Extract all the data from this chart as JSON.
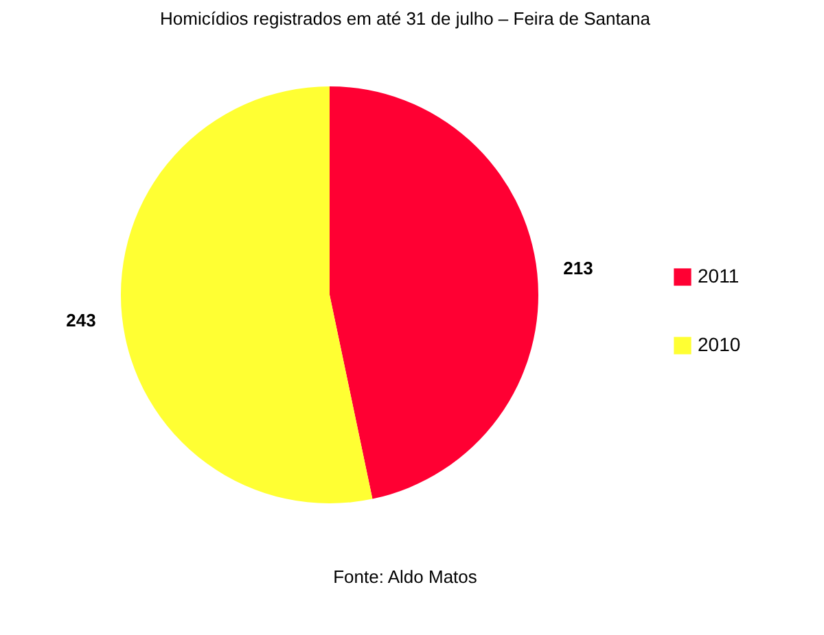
{
  "chart_data": {
    "type": "pie",
    "title": "Homicídios registrados em até 31 de julho – Feira de Santana",
    "categories": [
      "2011",
      "2010"
    ],
    "values": [
      213,
      243
    ],
    "colors": [
      "#ff0033",
      "#ffff33"
    ],
    "data_labels": true,
    "legend": "right",
    "annotations": [
      "Fonte: Aldo Matos"
    ]
  }
}
